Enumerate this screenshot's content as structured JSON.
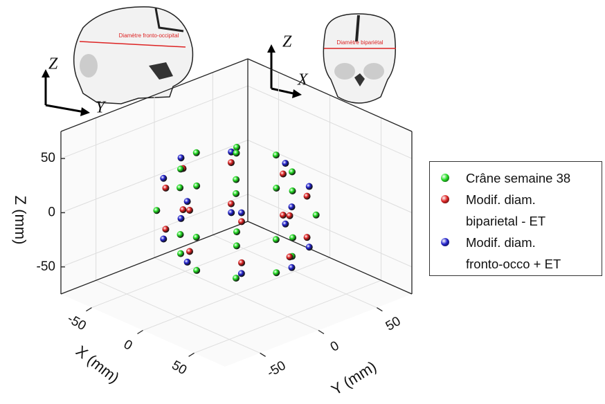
{
  "chart_data": {
    "type": "scatter3d",
    "xlabel": "X (mm)",
    "ylabel": "Y (mm)",
    "zlabel": "Z (mm)",
    "xlim": [
      -80,
      80
    ],
    "ylim": [
      -80,
      80
    ],
    "zlim": [
      -75,
      75
    ],
    "xticks": [
      -50,
      0,
      50
    ],
    "yticks": [
      -50,
      0,
      50
    ],
    "zticks": [
      -50,
      0,
      50
    ],
    "grid": true,
    "legend": "right",
    "illustrations": {
      "side": {
        "caption": "Diamètre fronto-occipital",
        "axis_v": "Z",
        "axis_h": "Y"
      },
      "front": {
        "caption": "Diamètre bipariétal",
        "axis_v": "Z",
        "axis_h": "X"
      }
    },
    "series": [
      {
        "name": "Crâne semaine 38",
        "color": "#22dd22",
        "x": [
          39,
          27,
          0,
          -27,
          -39,
          -27,
          0,
          27,
          55,
          39,
          0,
          -39,
          -55,
          -39,
          0,
          39,
          39,
          27,
          0,
          -27,
          -39,
          -27,
          0,
          27,
          0
        ],
        "y": [
          0,
          24,
          34,
          24,
          0,
          -24,
          -34,
          -24,
          0,
          34,
          48,
          34,
          0,
          -34,
          -48,
          -34,
          0,
          24,
          34,
          24,
          0,
          -24,
          -34,
          -24,
          0
        ],
        "z": [
          39,
          39,
          39,
          39,
          39,
          39,
          39,
          39,
          0,
          0,
          0,
          0,
          0,
          0,
          0,
          0,
          -39,
          -39,
          -39,
          -39,
          -39,
          -39,
          -39,
          -39,
          55
        ]
      },
      {
        "name": "Modif. diam.\nbiparietal - ET",
        "color": "#dd2222",
        "x": [
          52,
          37,
          0,
          -37,
          -52,
          -37,
          0,
          37,
          52,
          37,
          0,
          -37,
          -52,
          -37,
          0,
          37
        ],
        "y": [
          0,
          28,
          40,
          28,
          0,
          -28,
          -40,
          -28,
          0,
          28,
          40,
          28,
          0,
          -28,
          -40,
          -28
        ],
        "z": [
          19,
          19,
          19,
          19,
          19,
          19,
          19,
          19,
          -19,
          -19,
          -19,
          -19,
          -19,
          -19,
          -19,
          -19
        ]
      },
      {
        "name": "Modif. diam.\nfronto-occo + ET",
        "color": "#2222cc",
        "x": [
          54,
          38,
          0,
          -38,
          -54,
          -38,
          0,
          38,
          54,
          38,
          0,
          -38,
          -54,
          -38,
          0,
          38
        ],
        "y": [
          0,
          29,
          42,
          29,
          0,
          -29,
          -42,
          -29,
          0,
          29,
          42,
          29,
          0,
          -29,
          -42,
          -29
        ],
        "z": [
          28,
          28,
          28,
          28,
          28,
          28,
          28,
          28,
          -28,
          -28,
          -28,
          -28,
          -28,
          -28,
          -28,
          -28
        ]
      }
    ]
  }
}
